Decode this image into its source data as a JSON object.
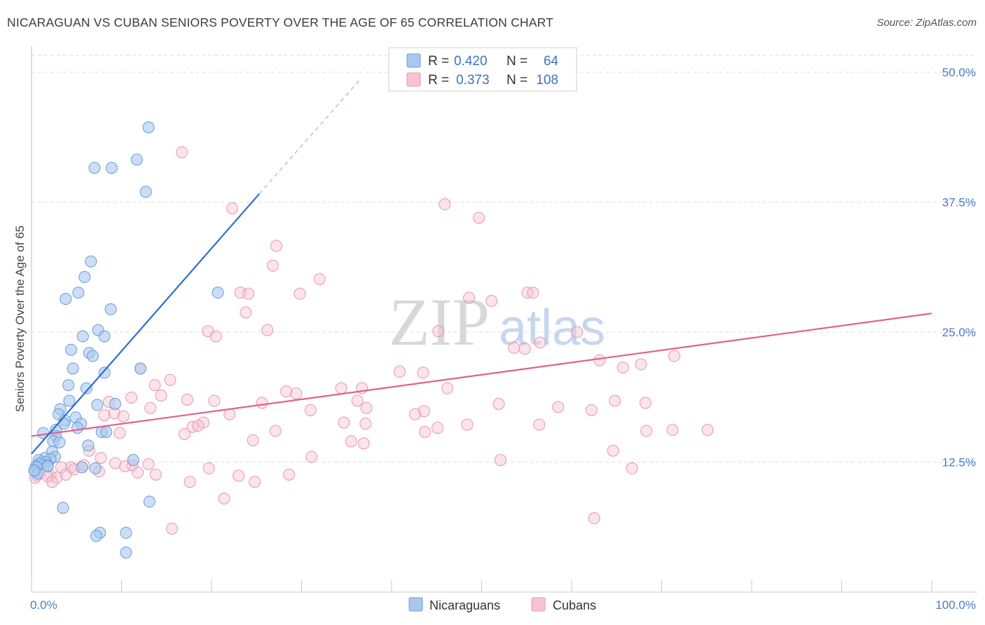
{
  "title": "NICARAGUAN VS CUBAN SENIORS POVERTY OVER THE AGE OF 65 CORRELATION CHART",
  "source": "Source: ZipAtlas.com",
  "watermark": {
    "zip": "ZIP",
    "atlas": "atlas"
  },
  "legend": {
    "rows": [
      {
        "r_label": "R =",
        "r_value": "0.420",
        "n_label": "N =",
        "n_value": "64"
      },
      {
        "r_label": "R =",
        "r_value": "0.373",
        "n_label": "N =",
        "n_value": "108"
      }
    ],
    "bottom": [
      "Nicaraguans",
      "Cubans"
    ]
  },
  "colors": {
    "nicaraguans_fill": "#a9c8ef",
    "nicaraguans_stroke": "#6a9bd8",
    "nicaraguans_line": "#2a6fd1",
    "cubans_fill": "#f6c3d2",
    "cubans_stroke": "#e995b0",
    "cubans_line": "#e0608e",
    "tick_text": "#4a7cc7",
    "grid": "#dddddd"
  },
  "chart_data": {
    "type": "scatter",
    "title": "NICARAGUAN VS CUBAN SENIORS POVERTY OVER THE AGE OF 65 CORRELATION CHART",
    "xlabel": "",
    "ylabel": "Seniors Poverty Over the Age of 65",
    "xlim": [
      0,
      100
    ],
    "ylim": [
      0,
      52.5
    ],
    "x_ticks": [
      "0.0%",
      "100.0%"
    ],
    "y_ticks": [
      {
        "value": 12.5,
        "label": "12.5%"
      },
      {
        "value": 25.0,
        "label": "25.0%"
      },
      {
        "value": 37.5,
        "label": "37.5%"
      },
      {
        "value": 50.0,
        "label": "50.0%"
      }
    ],
    "series": [
      {
        "name": "Nicaraguans",
        "R": 0.42,
        "N": 64,
        "trend": {
          "x0": 0,
          "y0": 13.3,
          "x1": 25.3,
          "y1": 38.3,
          "dash_to_x": 36.5,
          "dash_to_y": 49.3
        },
        "points": [
          [
            13,
            44.7
          ],
          [
            7,
            40.8
          ],
          [
            8.9,
            40.8
          ],
          [
            11.7,
            41.6
          ],
          [
            12.7,
            38.5
          ],
          [
            6.6,
            31.8
          ],
          [
            5.9,
            30.3
          ],
          [
            5.2,
            28.8
          ],
          [
            3.8,
            28.2
          ],
          [
            8.8,
            27.2
          ],
          [
            7.4,
            25.2
          ],
          [
            5.7,
            24.6
          ],
          [
            8.1,
            24.6
          ],
          [
            4.4,
            23.3
          ],
          [
            6.4,
            23.0
          ],
          [
            6.8,
            22.7
          ],
          [
            4.6,
            21.5
          ],
          [
            12.1,
            21.5
          ],
          [
            8.1,
            21.1
          ],
          [
            6.1,
            19.6
          ],
          [
            4.1,
            19.9
          ],
          [
            4.2,
            18.4
          ],
          [
            9.3,
            18.1
          ],
          [
            7.3,
            18.0
          ],
          [
            3.2,
            17.6
          ],
          [
            3.0,
            17.1
          ],
          [
            4.9,
            16.8
          ],
          [
            3.7,
            16.5
          ],
          [
            5.5,
            16.2
          ],
          [
            3.6,
            16.2
          ],
          [
            5.1,
            15.8
          ],
          [
            2.7,
            15.6
          ],
          [
            7.8,
            15.4
          ],
          [
            8.3,
            15.4
          ],
          [
            1.3,
            15.3
          ],
          [
            2.7,
            15.0
          ],
          [
            6.3,
            14.1
          ],
          [
            2.4,
            14.5
          ],
          [
            3.1,
            14.4
          ],
          [
            2.3,
            13.5
          ],
          [
            2.6,
            13.0
          ],
          [
            1.5,
            12.9
          ],
          [
            2.1,
            12.8
          ],
          [
            1.0,
            12.5
          ],
          [
            0.8,
            12.7
          ],
          [
            1.6,
            12.5
          ],
          [
            0.9,
            12.3
          ],
          [
            0.5,
            12.1
          ],
          [
            1.8,
            12.2
          ],
          [
            1.8,
            12.1
          ],
          [
            0.6,
            12.0
          ],
          [
            5.6,
            12.0
          ],
          [
            7.1,
            11.9
          ],
          [
            0.4,
            11.6
          ],
          [
            0.7,
            11.4
          ],
          [
            11.3,
            12.7
          ],
          [
            20.7,
            28.8
          ],
          [
            3.5,
            8.1
          ],
          [
            13.1,
            8.7
          ],
          [
            7.6,
            5.7
          ],
          [
            10.5,
            5.7
          ],
          [
            7.2,
            5.4
          ],
          [
            10.5,
            3.8
          ],
          [
            0.3,
            11.7
          ]
        ]
      },
      {
        "name": "Cubans",
        "R": 0.373,
        "N": 108,
        "trend": {
          "x0": 0,
          "y0": 15.0,
          "x1": 100,
          "y1": 26.8
        },
        "points": [
          [
            16.7,
            42.3
          ],
          [
            22.3,
            36.9
          ],
          [
            45.9,
            37.3
          ],
          [
            49.7,
            36.0
          ],
          [
            27.2,
            33.3
          ],
          [
            26.8,
            31.4
          ],
          [
            32.0,
            30.1
          ],
          [
            23.2,
            28.8
          ],
          [
            24.1,
            28.7
          ],
          [
            29.8,
            28.7
          ],
          [
            48.6,
            28.3
          ],
          [
            51.1,
            28.0
          ],
          [
            55.1,
            28.8
          ],
          [
            55.7,
            28.8
          ],
          [
            23.8,
            26.9
          ],
          [
            19.6,
            25.1
          ],
          [
            20.5,
            24.6
          ],
          [
            26.2,
            25.2
          ],
          [
            45.2,
            25.1
          ],
          [
            60.6,
            25.0
          ],
          [
            56.5,
            24.0
          ],
          [
            53.6,
            23.5
          ],
          [
            54.8,
            23.4
          ],
          [
            71.4,
            22.7
          ],
          [
            63.1,
            22.3
          ],
          [
            65.7,
            21.6
          ],
          [
            67.7,
            21.9
          ],
          [
            40.9,
            21.2
          ],
          [
            43.5,
            21.1
          ],
          [
            12.1,
            21.5
          ],
          [
            15.4,
            20.4
          ],
          [
            13.7,
            19.9
          ],
          [
            34.4,
            19.6
          ],
          [
            36.7,
            19.6
          ],
          [
            46.2,
            19.6
          ],
          [
            28.3,
            19.3
          ],
          [
            29.4,
            19.1
          ],
          [
            14.4,
            18.9
          ],
          [
            11.1,
            18.7
          ],
          [
            17.3,
            18.5
          ],
          [
            20.3,
            18.4
          ],
          [
            36.2,
            18.4
          ],
          [
            25.6,
            18.2
          ],
          [
            51.9,
            18.1
          ],
          [
            58.5,
            17.8
          ],
          [
            64.8,
            18.4
          ],
          [
            68.2,
            18.2
          ],
          [
            8.6,
            18.3
          ],
          [
            13.2,
            17.7
          ],
          [
            31.0,
            17.5
          ],
          [
            37.2,
            17.7
          ],
          [
            43.6,
            17.4
          ],
          [
            62.2,
            17.5
          ],
          [
            9.2,
            17.2
          ],
          [
            22.0,
            17.1
          ],
          [
            42.6,
            17.1
          ],
          [
            8.1,
            17.0
          ],
          [
            10.2,
            16.9
          ],
          [
            19.1,
            16.3
          ],
          [
            34.7,
            16.3
          ],
          [
            37.1,
            16.2
          ],
          [
            48.4,
            16.1
          ],
          [
            56.4,
            16.1
          ],
          [
            17.9,
            15.9
          ],
          [
            18.5,
            16.0
          ],
          [
            45.1,
            15.8
          ],
          [
            27.1,
            15.5
          ],
          [
            43.7,
            15.4
          ],
          [
            9.8,
            15.3
          ],
          [
            71.2,
            15.6
          ],
          [
            75.1,
            15.6
          ],
          [
            68.3,
            15.5
          ],
          [
            17.0,
            15.2
          ],
          [
            24.6,
            14.6
          ],
          [
            35.5,
            14.5
          ],
          [
            36.9,
            14.3
          ],
          [
            6.4,
            13.6
          ],
          [
            64.6,
            13.6
          ],
          [
            31.1,
            13.0
          ],
          [
            52.1,
            12.7
          ],
          [
            7.7,
            12.9
          ],
          [
            9.3,
            12.4
          ],
          [
            13.0,
            12.3
          ],
          [
            11.2,
            12.2
          ],
          [
            10.4,
            12.1
          ],
          [
            5.8,
            12.2
          ],
          [
            4.4,
            12.0
          ],
          [
            3.3,
            12.0
          ],
          [
            19.7,
            11.9
          ],
          [
            4.7,
            11.8
          ],
          [
            7.5,
            11.6
          ],
          [
            66.7,
            11.9
          ],
          [
            11.8,
            11.5
          ],
          [
            13.8,
            11.3
          ],
          [
            2.1,
            11.2
          ],
          [
            3.8,
            11.3
          ],
          [
            0.6,
            11.2
          ],
          [
            1.8,
            11.1
          ],
          [
            2.8,
            11.0
          ],
          [
            0.4,
            11.0
          ],
          [
            28.6,
            11.3
          ],
          [
            23.0,
            11.2
          ],
          [
            17.6,
            10.6
          ],
          [
            24.8,
            10.6
          ],
          [
            21.4,
            9.0
          ],
          [
            62.5,
            7.1
          ],
          [
            15.6,
            6.1
          ],
          [
            2.3,
            10.6
          ]
        ]
      }
    ]
  }
}
